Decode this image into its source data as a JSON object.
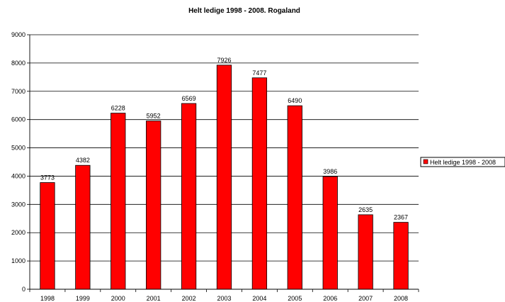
{
  "chart_data": {
    "type": "bar",
    "title": "Helt ledige 1998 - 2008. Rogaland",
    "xlabel": "",
    "ylabel": "",
    "categories": [
      "1998",
      "1999",
      "2000",
      "2001",
      "2002",
      "2003",
      "2004",
      "2005",
      "2006",
      "2007",
      "2008"
    ],
    "series": [
      {
        "name": "Helt ledige 1998 - 2008",
        "values": [
          3773,
          4382,
          6228,
          5952,
          6569,
          7926,
          7477,
          6490,
          3986,
          2635,
          2367
        ],
        "color": "#ff0000"
      }
    ],
    "ylim": [
      0,
      9000
    ],
    "yticks": [
      "0",
      "1000",
      "2000",
      "3000",
      "4000",
      "5000",
      "6000",
      "7000",
      "8000",
      "9000"
    ],
    "data_labels": [
      "3773",
      "4382",
      "6228",
      "5952",
      "6569",
      "7926",
      "7477",
      "6490",
      "3986",
      "2635",
      "2367"
    ],
    "grid": true,
    "legend_position": "right"
  }
}
